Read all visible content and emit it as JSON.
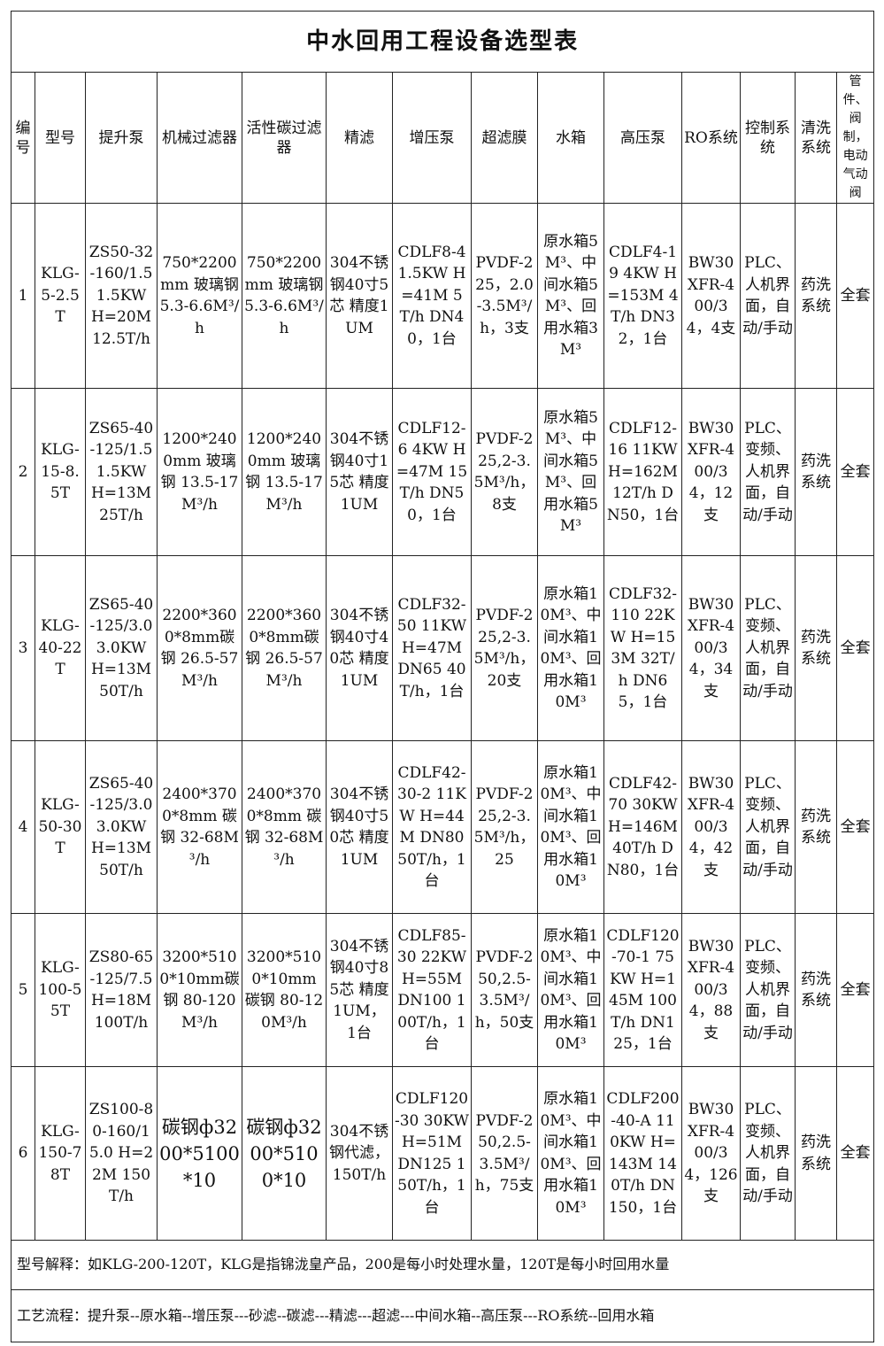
{
  "title": "中水回用工程设备选型表",
  "headers": [
    "编号",
    "型号",
    "提升泵",
    "机械过滤器",
    "活性碳过滤器",
    "精滤",
    "增压泵",
    "超滤膜",
    "水箱",
    "高压泵",
    "RO系统",
    "控制系统",
    "清洗系统",
    "管件、阀制，电动气动阀"
  ],
  "rows": [
    [
      "1",
      "KLG-5-2.5T",
      "ZS50-32-160/1.5 1.5KW H=20M 12.5T/h",
      "750*2200mm 玻璃钢 5.3-6.6M³/h",
      "750*2200mm 玻璃钢 5.3-6.6M³/h",
      "304不锈钢40寸5芯 精度1UM",
      "CDLF8-4 1.5KW H=41M 5T/h DN40，1台",
      "PVDF-225，2.0-3.5M³/h，3支",
      "原水箱5M³、中间水箱5M³、回用水箱3M³",
      "CDLF4-19 4KW H=153M 4T/h DN32，1台",
      "BW30XFR-400/34，4支",
      "PLC、人机界面，自动/手动",
      "药洗系统",
      "全套"
    ],
    [
      "2",
      "KLG-15-8.5T",
      "ZS65-40-125/1.5 1.5KW H=13M 25T/h",
      "1200*2400mm 玻璃钢 13.5-17M³/h",
      "1200*2400mm 玻璃钢 13.5-17M³/h",
      "304不锈钢40寸15芯 精度1UM",
      "CDLF12-6 4KW H=47M 15T/h DN50，1台",
      "PVDF-225,2-3.5M³/h，8支",
      "原水箱5M³、中间水箱5M³、回用水箱5M³",
      "CDLF12-16 11KW H=162M 12T/h DN50，1台",
      "BW30XFR-400/34，12支",
      "PLC、变频、人机界面，自动/手动",
      "药洗系统",
      "全套"
    ],
    [
      "3",
      "KLG-40-22T",
      "ZS65-40-125/3.0 3.0KW H=13M 50T/h",
      "2200*3600*8mm碳钢 26.5-57M³/h",
      "2200*3600*8mm碳钢 26.5-57M³/h",
      "304不锈钢40寸40芯 精度1UM",
      "CDLF32-50 11KW H=47M DN65 40T/h，1台",
      "PVDF-225,2-3.5M³/h，20支",
      "原水箱10M³、中间水箱10M³、回用水箱10M³",
      "CDLF32-110 22KW H=153M 32T/h DN65，1台",
      "BW30XFR-400/34，34支",
      "PLC、变频、人机界面，自动/手动",
      "药洗系统",
      "全套"
    ],
    [
      "4",
      "KLG-50-30T",
      "ZS65-40-125/3.0 3.0KW H=13M 50T/h",
      "2400*3700*8mm 碳钢 32-68M³/h",
      "2400*3700*8mm 碳钢 32-68M³/h",
      "304不锈钢40寸50芯 精度1UM",
      "CDLF42-30-2 11KW H=44M DN80 50T/h，1台",
      "PVDF-225,2-3.5M³/h，25",
      "原水箱10M³、中间水箱10M³、回用水箱10M³",
      "CDLF42-70 30KW H=146M 40T/h DN80，1台",
      "BW30XFR-400/34，42支",
      "PLC、变频、人机界面，自动/手动",
      "药洗系统",
      "全套"
    ],
    [
      "5",
      "KLG-100-55T",
      "ZS80-65-125/7.5 H=18M 100T/h",
      "3200*5100*10mm碳钢 80-120M³/h",
      "3200*5100*10mm碳钢 80-120M³/h",
      "304不锈钢40寸85芯 精度1UM，1台",
      "CDLF85-30 22KW H=55M DN100 100T/h，1台",
      "PVDF-250,2.5-3.5M³/h，50支",
      "原水箱10M³、中间水箱10M³、回用水箱10M³",
      "CDLF120-70-1 75KW H=145M 100T/h DN125，1台",
      "BW30XFR-400/34，88支",
      "PLC、变频、人机界面，自动/手动",
      "药洗系统",
      "全套"
    ],
    [
      "6",
      "KLG-150-78T",
      "ZS100-80-160/15.0 H=22M 150T/h",
      "碳钢ф3200*5100*10",
      "碳钢ф3200*5100*10",
      "304不锈钢代滤，150T/h",
      "CDLF120-30 30KW H=51M DN125 150T/h，1台",
      "PVDF-250,2.5-3.5M³/h，75支",
      "原水箱10M³、中间水箱10M³、回用水箱10M³",
      "CDLF200-40-A 110KW H=143M 140T/h DN150，1台",
      "BW30XFR-400/34，126支",
      "PLC、变频、人机界面，自动/手动",
      "药洗系统",
      "全套"
    ]
  ],
  "notes": {
    "model_explanation": "型号解释：如KLG-200-120T，KLG是指锦泷皇产品，200是每小时处理水量，120T是每小时回用水量",
    "process_flow": "工艺流程：提升泵--原水箱--增压泵---砂滤--碳滤---精滤---超滤---中间水箱--高压泵---RO系统--回用水箱"
  }
}
